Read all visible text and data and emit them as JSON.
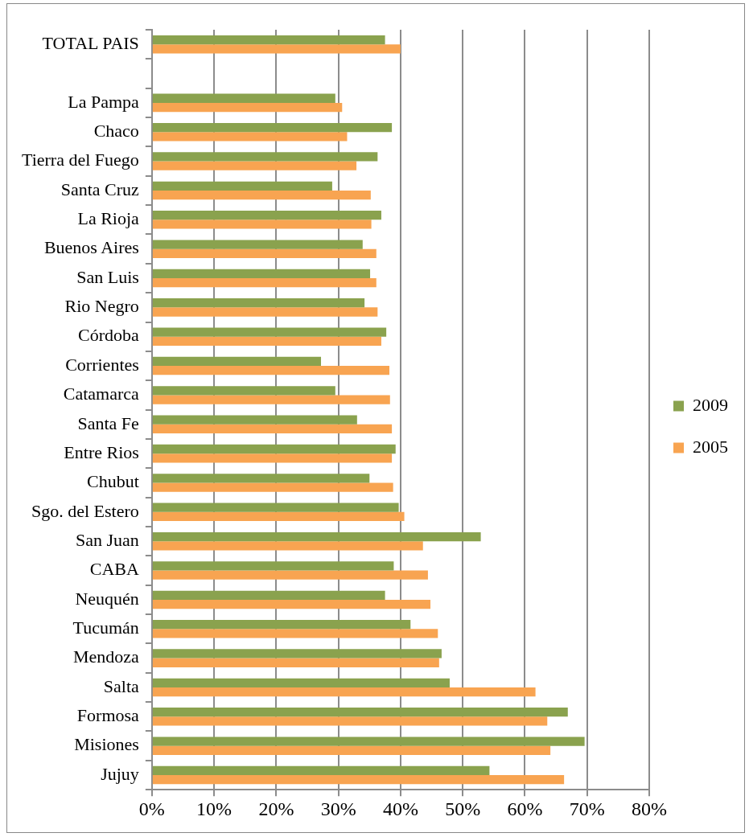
{
  "chart_data": {
    "type": "bar",
    "orientation": "horizontal",
    "categories": [
      "TOTAL PAIS",
      null,
      "La Pampa",
      "Chaco",
      "Tierra del Fuego",
      "Santa Cruz",
      "La Rioja",
      "Buenos Aires",
      "San Luis",
      "Rio Negro",
      "Córdoba",
      "Corrientes",
      "Catamarca",
      "Santa Fe",
      "Entre Rios",
      "Chubut",
      "Sgo. del Estero",
      "San Juan",
      "CABA",
      "Neuquén",
      "Tucumán",
      "Mendoza",
      "Salta",
      "Formosa",
      "Misiones",
      "Jujuy"
    ],
    "series": [
      {
        "name": "2009",
        "color": "#8aa24e",
        "values": [
          37.5,
          null,
          29.5,
          38.6,
          36.3,
          29.0,
          36.9,
          33.9,
          35.1,
          34.2,
          37.7,
          27.2,
          29.5,
          33.0,
          39.2,
          35.0,
          39.7,
          52.9,
          38.9,
          37.5,
          41.6,
          46.6,
          47.9,
          66.9,
          69.6,
          54.3
        ]
      },
      {
        "name": "2005",
        "color": "#f8a451",
        "values": [
          40.0,
          null,
          30.6,
          31.4,
          32.9,
          35.2,
          35.3,
          36.1,
          36.1,
          36.3,
          36.9,
          38.2,
          38.3,
          38.6,
          38.6,
          38.8,
          40.6,
          43.6,
          44.4,
          44.8,
          46.0,
          46.2,
          61.7,
          63.6,
          64.1,
          66.3
        ]
      }
    ],
    "xlim": [
      0,
      80
    ],
    "xticks": [
      {
        "value": 0,
        "label": "0%"
      },
      {
        "value": 10,
        "label": "10%"
      },
      {
        "value": 20,
        "label": "20%"
      },
      {
        "value": 30,
        "label": "30%"
      },
      {
        "value": 40,
        "label": "40%"
      },
      {
        "value": 50,
        "label": "50%"
      },
      {
        "value": 60,
        "label": "60%"
      },
      {
        "value": 70,
        "label": "70%"
      },
      {
        "value": 80,
        "label": "80%"
      }
    ],
    "grid": "x",
    "legend": "right"
  }
}
